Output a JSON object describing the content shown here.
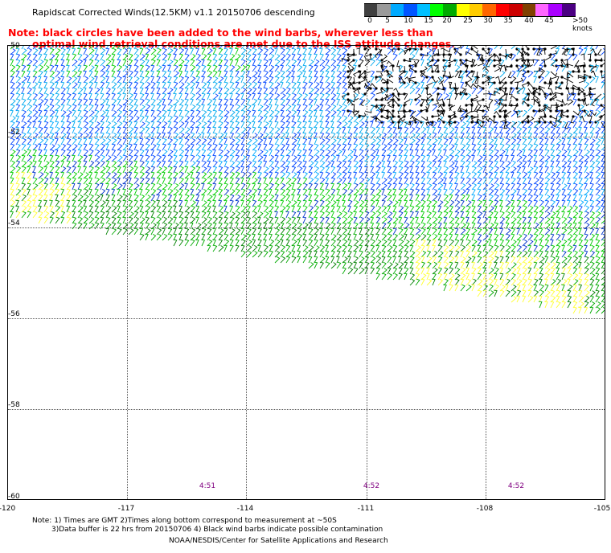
{
  "header": {
    "title": "Rapidscat Corrected Winds(12.5KM) v1.1 20150706 descending",
    "note_line1": "Note: black circles have been added to the wind barbs, wherever less than",
    "note_line2": "optimal wind retrieval conditions are met due to the ISS attitude changes."
  },
  "legend": {
    "units": ">50 knots",
    "labels": [
      "0",
      "5",
      "10",
      "15",
      "20",
      "25",
      "30",
      "35",
      "40",
      "45",
      ">50 knots"
    ],
    "colors": [
      "#404040",
      "#9a9a9a",
      "#00aaff",
      "#0055ff",
      "#00c0ff",
      "#00ff00",
      "#00aa00",
      "#ffff00",
      "#ffcc00",
      "#ff6600",
      "#ff0000",
      "#cc0000",
      "#804000",
      "#ff66ff",
      "#aa00ff",
      "#4b0082"
    ]
  },
  "map": {
    "lat_labels": [
      "-50",
      "-52",
      "-54",
      "-56",
      "-58",
      "-60"
    ],
    "lon_labels": [
      "-120",
      "-117",
      "-114",
      "-111",
      "-108",
      "-105"
    ],
    "time_labels": [
      "4:51",
      "4:52",
      "4:52"
    ]
  },
  "footer": {
    "note_line1": "Note: 1) Times are GMT 2)Times along bottom correspond to measurement at ~50S",
    "note_line2": "3)Data buffer is 22 hrs from 20150706 4) Black wind barbs indicate possible contamination",
    "credit": "NOAA/NESDIS/Center for Satellite Applications and Research"
  }
}
